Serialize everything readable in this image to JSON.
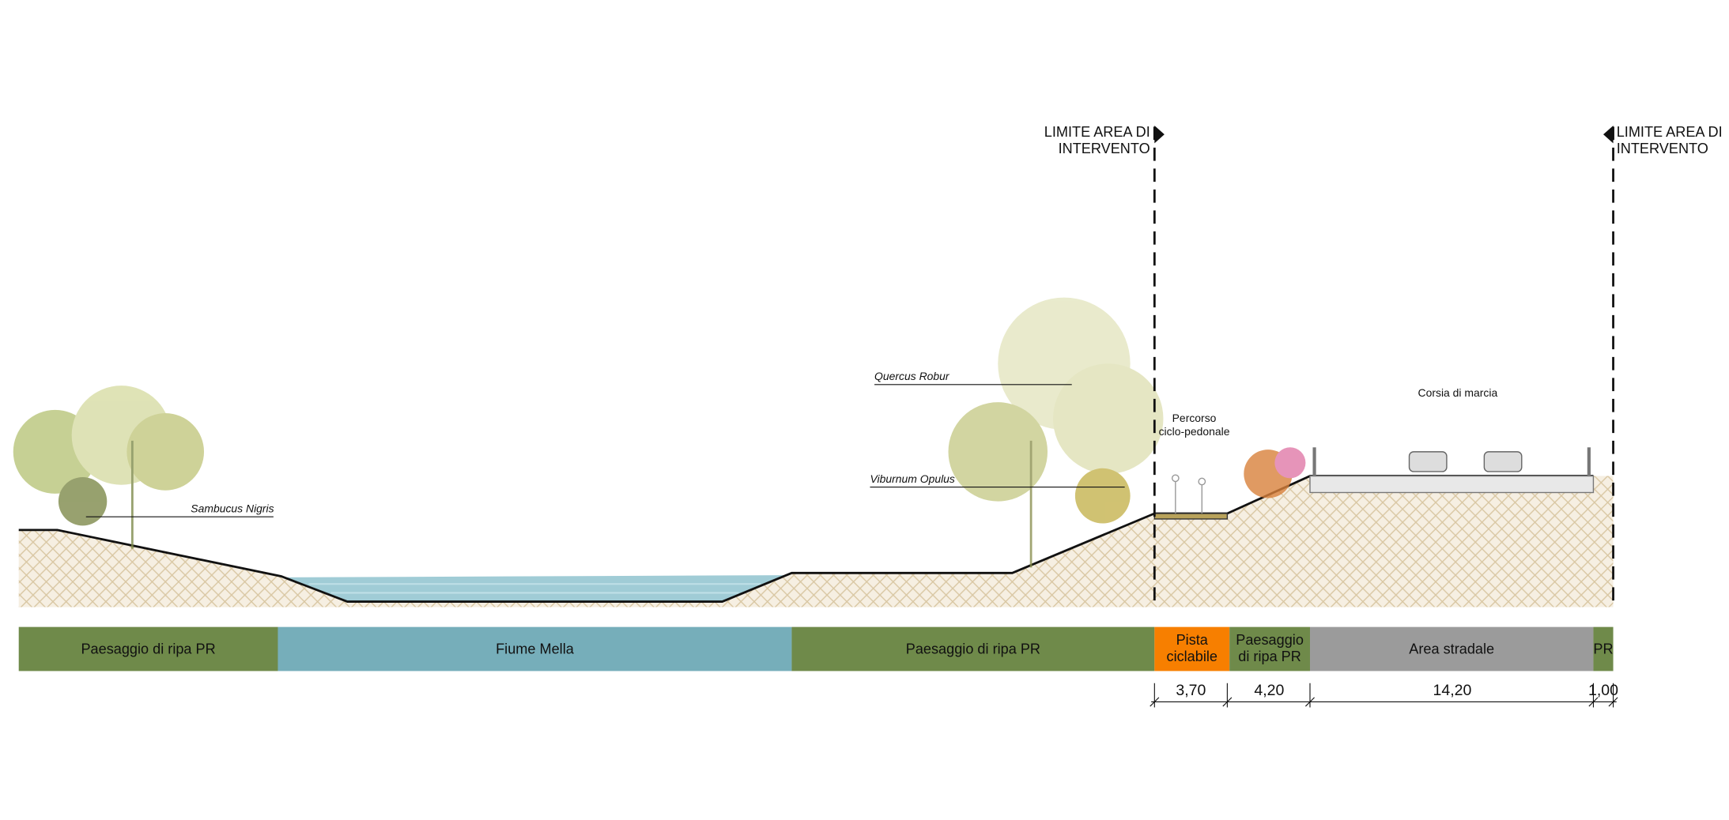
{
  "limits": [
    {
      "lines": [
        "LIMITE AREA DI",
        "INTERVENTO"
      ]
    },
    {
      "lines": [
        "LIMITE AREA DI",
        "INTERVENTO"
      ]
    }
  ],
  "plants": [
    "Sambucus Nigris",
    "Quercus Robur",
    "Viburnum Opulus"
  ],
  "annotations": {
    "path": [
      "Percorso",
      "ciclo-pedonale"
    ],
    "lane": "Corsia di marcia"
  },
  "zones": [
    {
      "lines": [
        "Paesaggio di ripa PR"
      ]
    },
    {
      "lines": [
        "Fiume Mella"
      ]
    },
    {
      "lines": [
        "Paesaggio di ripa PR"
      ]
    },
    {
      "lines": [
        "Pista",
        "ciclabile"
      ]
    },
    {
      "lines": [
        "Paesaggio",
        "di ripa PR"
      ]
    },
    {
      "lines": [
        "Area stradale"
      ]
    },
    {
      "lines": [
        "PR"
      ]
    }
  ],
  "dimensions": [
    "3,70",
    "4,20",
    "14,20",
    "1,00"
  ]
}
